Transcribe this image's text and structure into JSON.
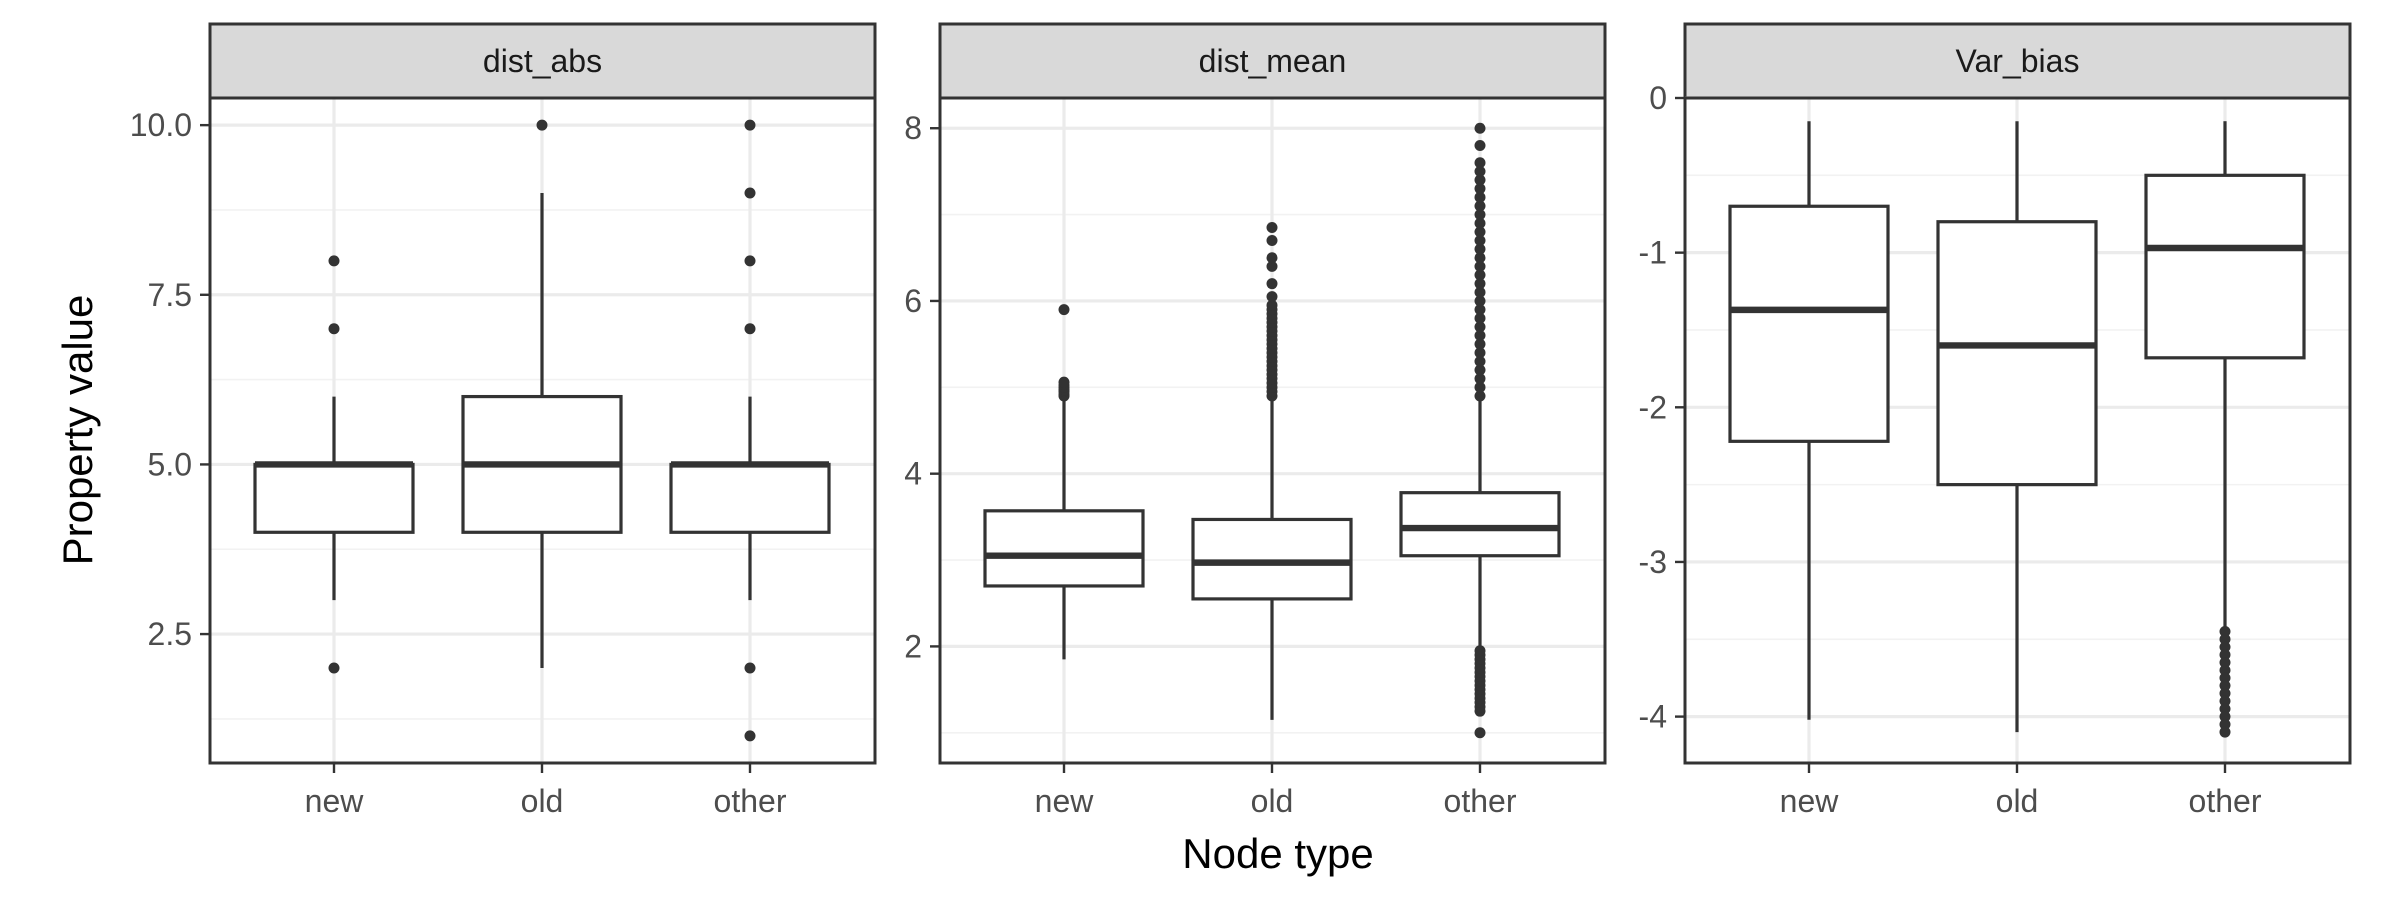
{
  "chart_data": {
    "type": "boxplot",
    "xlabel": "Node type",
    "ylabel": "Property value",
    "categories": [
      "new",
      "old",
      "other"
    ],
    "grid": true,
    "facets": [
      {
        "title": "dist_abs",
        "ylim": [
          0.6,
          10.4
        ],
        "y_ticks": [
          2.5,
          5.0,
          7.5,
          10.0
        ],
        "y_tick_labels": [
          "2.5",
          "5.0",
          "7.5",
          "10.0"
        ],
        "boxes": [
          {
            "category": "new",
            "whisker_low": 3,
            "q1": 4,
            "median": 5,
            "q3": 5,
            "whisker_high": 6,
            "outliers": [
              2,
              7,
              8
            ]
          },
          {
            "category": "old",
            "whisker_low": 2,
            "q1": 4,
            "median": 5,
            "q3": 6,
            "whisker_high": 9,
            "outliers": [
              10
            ]
          },
          {
            "category": "other",
            "whisker_low": 3,
            "q1": 4,
            "median": 5,
            "q3": 5,
            "whisker_high": 6,
            "outliers": [
              1,
              2,
              7,
              8,
              9,
              10
            ]
          }
        ]
      },
      {
        "title": "dist_mean",
        "ylim": [
          0.65,
          8.35
        ],
        "y_ticks": [
          2,
          4,
          6,
          8
        ],
        "y_tick_labels": [
          "2",
          "4",
          "6",
          "8"
        ],
        "boxes": [
          {
            "category": "new",
            "whisker_low": 1.85,
            "q1": 2.7,
            "median": 3.05,
            "q3": 3.57,
            "whisker_high": 4.85,
            "outliers": [
              4.9,
              4.92,
              4.95,
              4.97,
              5.0,
              5.03,
              5.06,
              5.9
            ]
          },
          {
            "category": "old",
            "whisker_low": 1.15,
            "q1": 2.55,
            "median": 2.97,
            "q3": 3.47,
            "whisker_high": 4.85,
            "outliers": [
              4.9,
              4.95,
              5.0,
              5.05,
              5.1,
              5.15,
              5.2,
              5.25,
              5.3,
              5.35,
              5.4,
              5.45,
              5.5,
              5.55,
              5.6,
              5.65,
              5.7,
              5.75,
              5.8,
              5.85,
              5.9,
              5.95,
              6.05,
              6.2,
              6.4,
              6.5,
              6.7,
              6.85
            ]
          },
          {
            "category": "other",
            "whisker_low": 2.0,
            "q1": 3.05,
            "median": 3.37,
            "q3": 3.78,
            "whisker_high": 4.85,
            "outliers": [
              1.0,
              1.25,
              1.3,
              1.35,
              1.4,
              1.45,
              1.5,
              1.55,
              1.6,
              1.65,
              1.7,
              1.75,
              1.8,
              1.85,
              1.9,
              1.95,
              4.9,
              5.0,
              5.1,
              5.2,
              5.3,
              5.4,
              5.5,
              5.6,
              5.7,
              5.8,
              5.9,
              6.0,
              6.1,
              6.2,
              6.3,
              6.4,
              6.5,
              6.6,
              6.7,
              6.8,
              6.9,
              7.0,
              7.1,
              7.2,
              7.3,
              7.4,
              7.5,
              7.6,
              7.8,
              8.0
            ]
          }
        ]
      },
      {
        "title": "Var_bias",
        "ylim": [
          -4.3,
          0.0
        ],
        "y_ticks": [
          -4,
          -3,
          -2,
          -1,
          0
        ],
        "y_tick_labels": [
          "-4",
          "-3",
          "-2",
          "-1",
          "0"
        ],
        "boxes": [
          {
            "category": "new",
            "whisker_low": -4.02,
            "q1": -2.22,
            "median": -1.37,
            "q3": -0.7,
            "whisker_high": -0.15,
            "outliers": []
          },
          {
            "category": "old",
            "whisker_low": -4.1,
            "q1": -2.5,
            "median": -1.6,
            "q3": -0.8,
            "whisker_high": -0.15,
            "outliers": []
          },
          {
            "category": "other",
            "whisker_low": -3.45,
            "q1": -1.68,
            "median": -0.97,
            "q3": -0.5,
            "whisker_high": -0.15,
            "outliers": [
              -3.45,
              -3.5,
              -3.55,
              -3.6,
              -3.65,
              -3.7,
              -3.75,
              -3.8,
              -3.85,
              -3.9,
              -3.95,
              -4.0,
              -4.05,
              -4.1
            ]
          }
        ]
      }
    ]
  }
}
